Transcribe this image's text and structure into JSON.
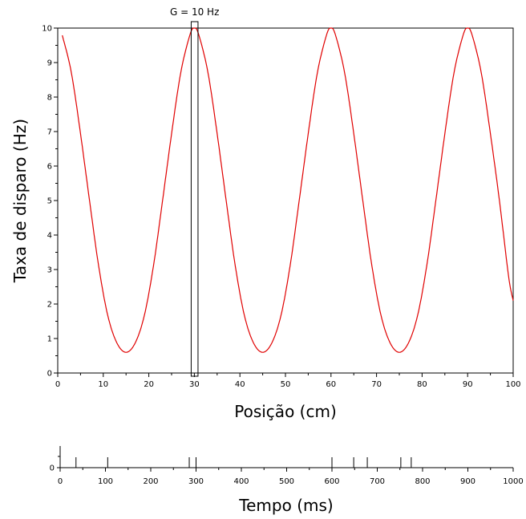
{
  "chart_data": [
    {
      "type": "line",
      "title": "",
      "xlabel": "Posição (cm)",
      "ylabel": "Taxa de disparo (Hz)",
      "xlim": [
        0,
        100
      ],
      "ylim": [
        0,
        10
      ],
      "xticks": [
        0,
        10,
        20,
        30,
        40,
        50,
        60,
        70,
        80,
        90,
        100
      ],
      "yticks": [
        0,
        1,
        2,
        3,
        4,
        5,
        6,
        7,
        8,
        9,
        10
      ],
      "grid": false,
      "series": [
        {
          "color": "#e00000",
          "x": [
            1,
            3,
            5,
            7,
            9,
            11,
            13,
            15,
            17,
            19,
            21,
            23,
            25,
            27,
            29,
            30,
            31,
            33,
            35,
            37,
            39,
            41,
            43,
            45,
            47,
            49,
            51,
            53,
            55,
            57,
            59,
            60,
            61,
            63,
            65,
            67,
            69,
            71,
            73,
            75,
            77,
            79,
            81,
            83,
            85,
            87,
            89,
            90,
            91,
            93,
            95,
            97,
            99,
            100
          ],
          "y": [
            9.79,
            8.7,
            6.94,
            4.98,
            3.09,
            1.66,
            0.87,
            0.6,
            0.87,
            1.66,
            3.09,
            4.98,
            6.94,
            8.7,
            9.79,
            10.0,
            9.79,
            8.7,
            6.94,
            4.98,
            3.09,
            1.66,
            0.87,
            0.6,
            0.87,
            1.66,
            3.09,
            4.98,
            6.94,
            8.7,
            9.79,
            10.0,
            9.79,
            8.7,
            6.94,
            4.98,
            3.09,
            1.66,
            0.87,
            0.6,
            0.87,
            1.66,
            3.09,
            4.98,
            6.94,
            8.7,
            9.79,
            10.0,
            9.79,
            8.7,
            6.94,
            4.98,
            2.8,
            2.1
          ]
        }
      ],
      "annotations": [
        {
          "text": "G = 10 Hz",
          "x_range": [
            29.3,
            30.8
          ]
        }
      ]
    },
    {
      "type": "scatter",
      "title": "",
      "xlabel": "Tempo (ms)",
      "ylabel": "",
      "xlim": [
        0,
        1000
      ],
      "xticks": [
        0,
        100,
        200,
        300,
        400,
        500,
        600,
        700,
        800,
        900,
        1000
      ],
      "yticks": [
        0
      ],
      "spikes": [
        35,
        105,
        285,
        300,
        600,
        648,
        678,
        752,
        775
      ]
    }
  ]
}
